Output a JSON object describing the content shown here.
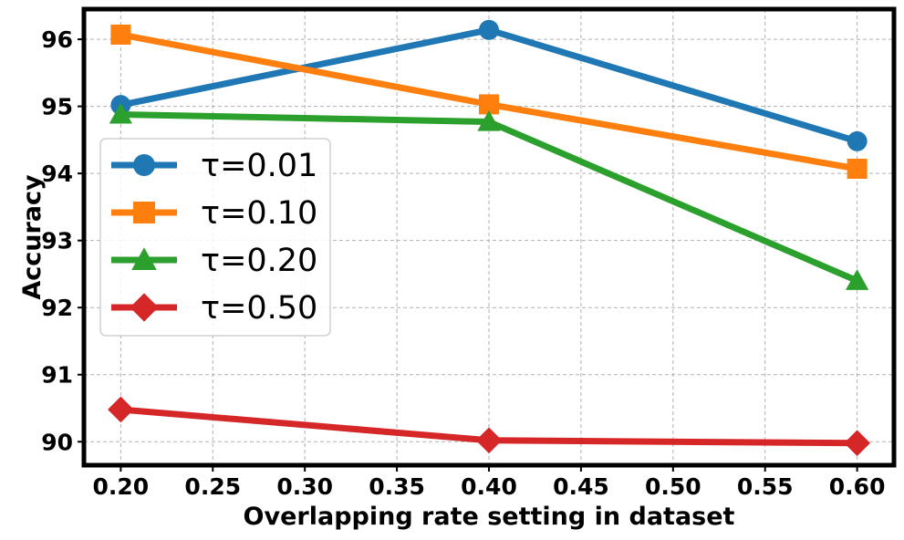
{
  "chart_data": {
    "type": "line",
    "title": "",
    "xlabel": "Overlapping rate setting in dataset",
    "ylabel": "Accuracy",
    "x": [
      0.2,
      0.4,
      0.6
    ],
    "xlim": [
      0.18,
      0.62
    ],
    "ylim": [
      89.65,
      96.45
    ],
    "xticks": [
      "0.20",
      "0.25",
      "0.30",
      "0.35",
      "0.40",
      "0.45",
      "0.50",
      "0.55",
      "0.60"
    ],
    "xtick_values": [
      0.2,
      0.25,
      0.3,
      0.35,
      0.4,
      0.45,
      0.5,
      0.55,
      0.6
    ],
    "yticks": [
      "90",
      "91",
      "92",
      "93",
      "94",
      "95",
      "96"
    ],
    "ytick_values": [
      90,
      91,
      92,
      93,
      94,
      95,
      96
    ],
    "grid": true,
    "legend_position": "center-left",
    "series": [
      {
        "name": "τ=0.01",
        "values": [
          95.02,
          96.14,
          94.48
        ],
        "color": "#1f77b4",
        "marker": "circle"
      },
      {
        "name": "τ=0.10",
        "values": [
          96.07,
          95.03,
          94.07
        ],
        "color": "#ff7f0e",
        "marker": "square"
      },
      {
        "name": "τ=0.20",
        "values": [
          94.88,
          94.77,
          92.4
        ],
        "color": "#2ca02c",
        "marker": "triangle"
      },
      {
        "name": "τ=0.50",
        "values": [
          90.48,
          90.02,
          89.98
        ],
        "color": "#d62728",
        "marker": "diamond"
      }
    ]
  }
}
